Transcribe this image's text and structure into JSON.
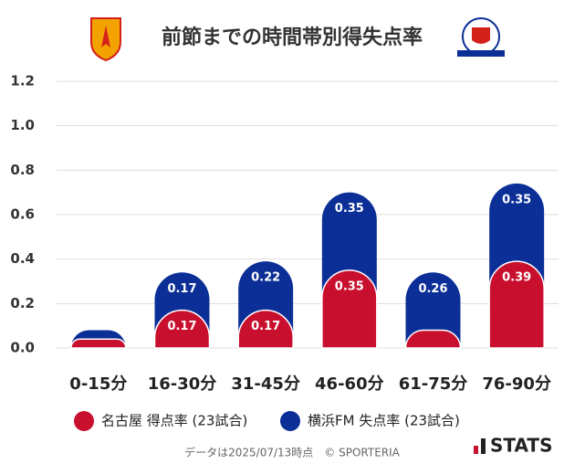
{
  "chart_data": {
    "type": "stacked-bar",
    "title": "前節までの時間帯別得失点率",
    "categories": [
      "0-15分",
      "16-30分",
      "31-45分",
      "46-60分",
      "61-75分",
      "76-90分"
    ],
    "series": [
      {
        "name": "名古屋 得点率 (23試合)",
        "color": "#c8102e",
        "values": [
          0.04,
          0.17,
          0.17,
          0.35,
          0.08,
          0.39
        ],
        "value_labels": [
          null,
          "0.17",
          "0.17",
          "0.35",
          null,
          "0.39"
        ]
      },
      {
        "name": "横浜FM 失点率 (23試合)",
        "color": "#0b2f96",
        "values": [
          0.04,
          0.17,
          0.22,
          0.35,
          0.26,
          0.35
        ],
        "value_labels": [
          null,
          "0.17",
          "0.22",
          "0.35",
          "0.26",
          "0.35"
        ]
      }
    ],
    "ylim": [
      0,
      1.2
    ],
    "yticks": [
      {
        "value": 0,
        "label": "0.0"
      },
      0.2,
      0.4,
      0.6,
      0.8,
      {
        "value": 1,
        "label": "1.0"
      },
      1.2
    ],
    "grid": true
  },
  "footer": {
    "credit": "データは2025/07/13時点　© SPORTERIA",
    "brand": "STATS"
  }
}
